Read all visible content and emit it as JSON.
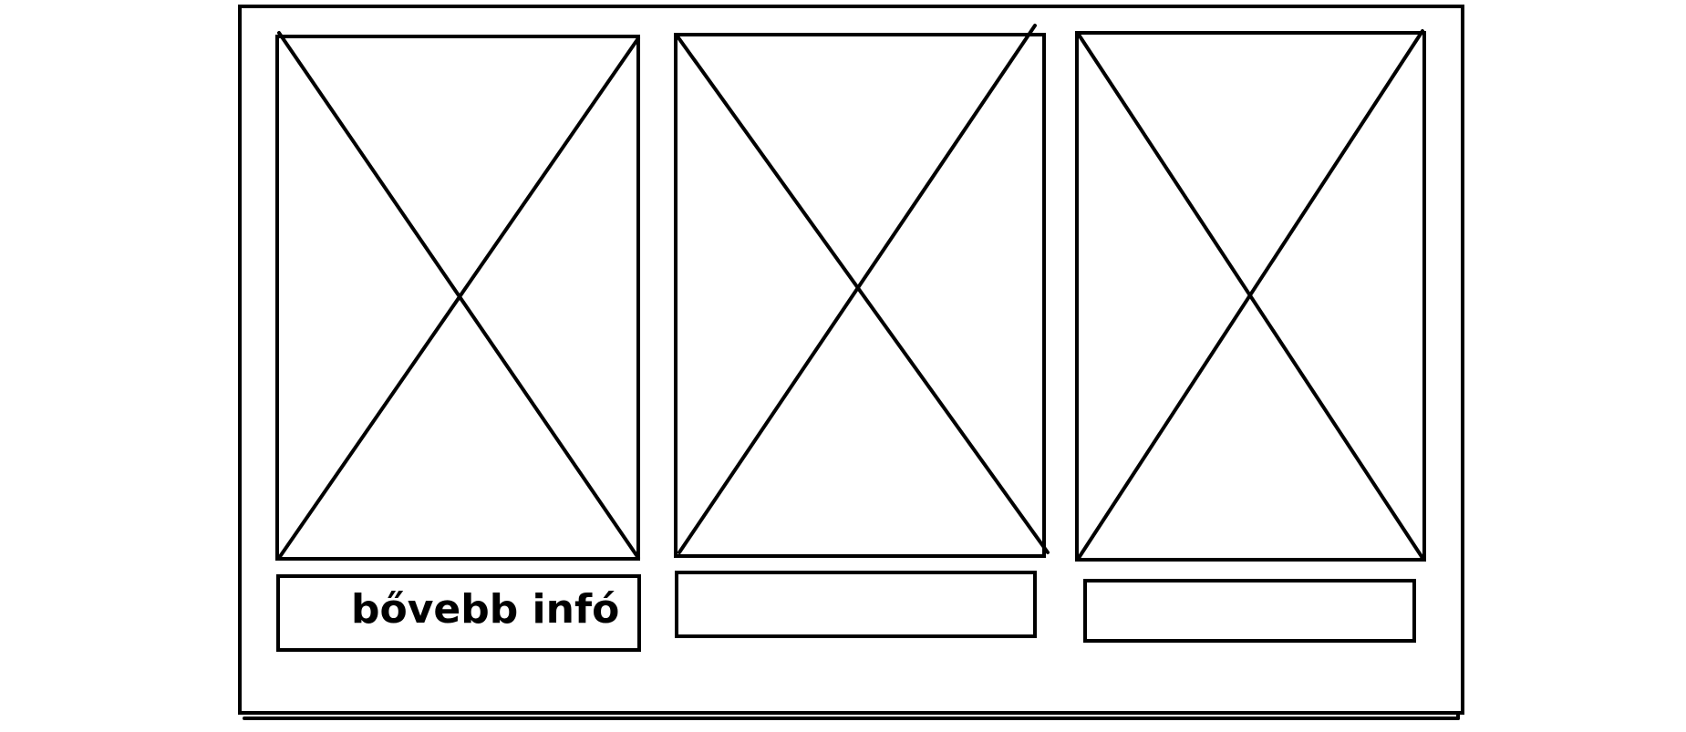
{
  "cards": [
    {
      "image": "image-placeholder",
      "button_label": "bővebb infó"
    },
    {
      "image": "image-placeholder",
      "button_label": ""
    },
    {
      "image": "image-placeholder",
      "button_label": ""
    }
  ],
  "colors": {
    "stroke": "#000000",
    "background": "#ffffff"
  }
}
